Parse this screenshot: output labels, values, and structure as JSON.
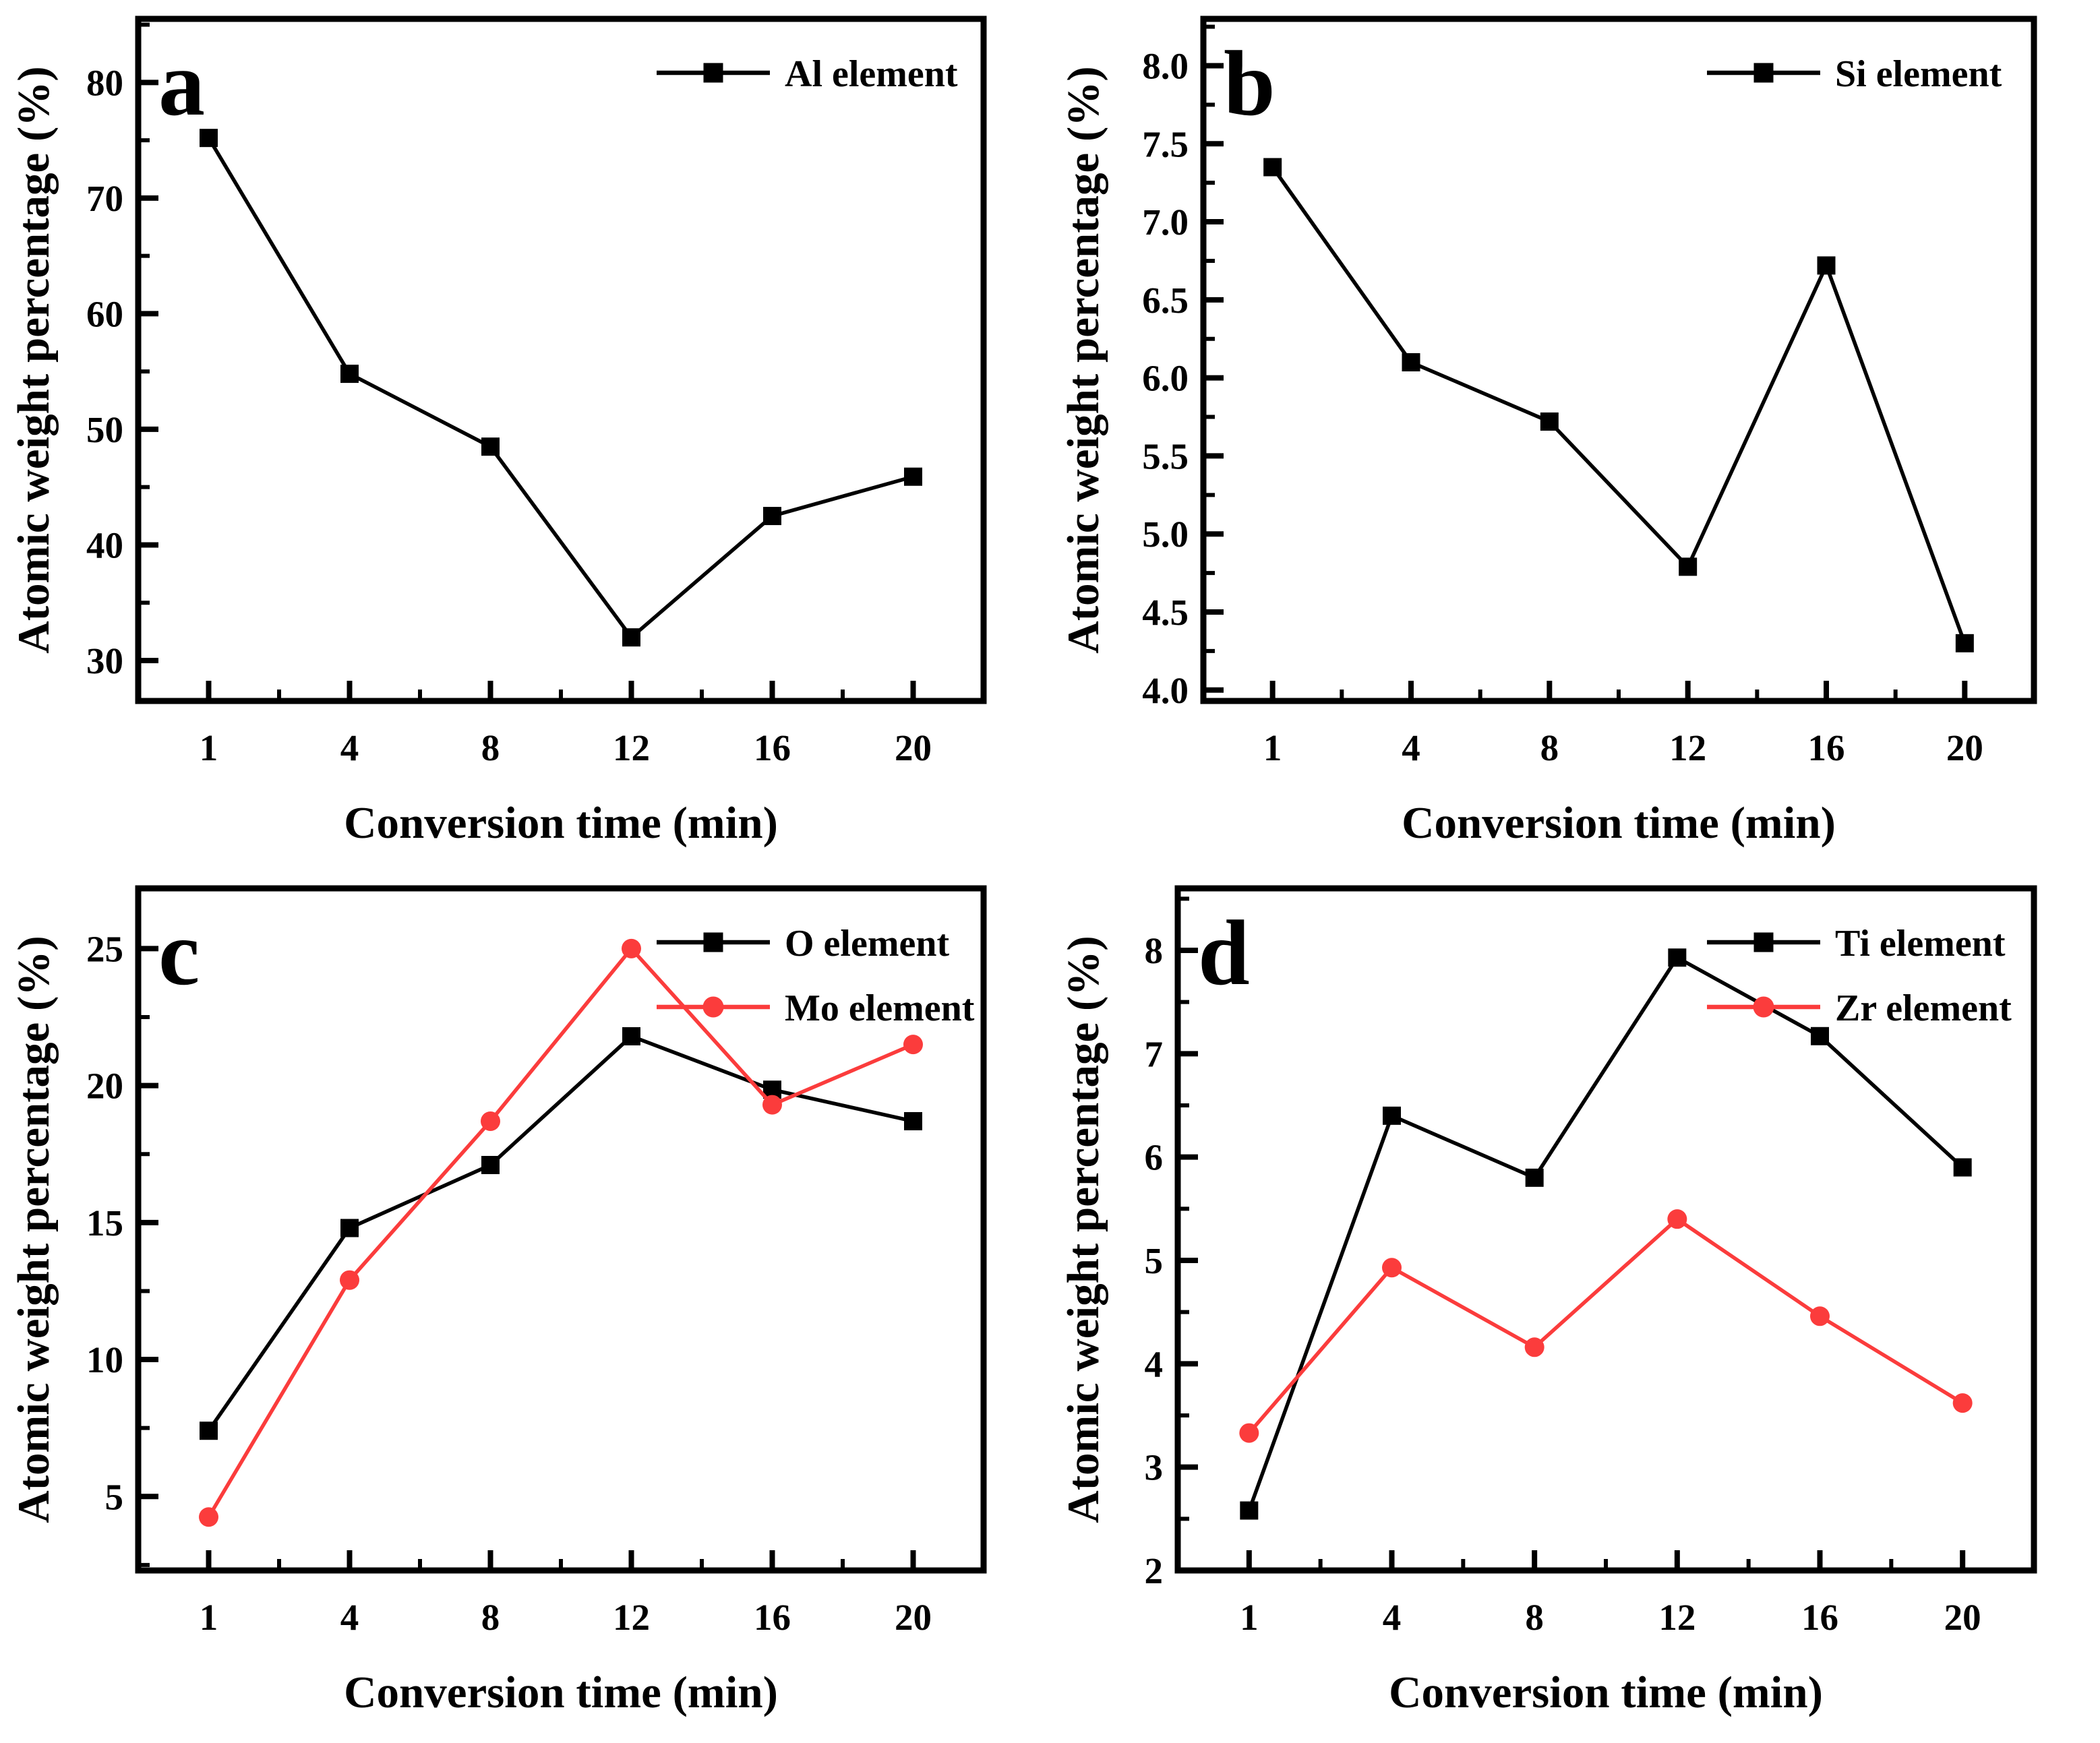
{
  "figure": {
    "background": "#ffffff",
    "xlabel": "Conversion time (min)",
    "ylabel": "Atomic weight percentage (%)"
  },
  "colors": {
    "black_series": "#000000",
    "red_series": "#fb3c3c",
    "axis": "#000000",
    "text": "#000000"
  },
  "chart_data": [
    {
      "type": "line",
      "panel_label": "a",
      "xlabel": "Conversion time (min)",
      "ylabel": "Atomic weight percentage (%)",
      "x_categories": [
        "1",
        "4",
        "8",
        "12",
        "16",
        "20"
      ],
      "ylim": [
        26.5,
        85.5
      ],
      "yticks": [
        30,
        40,
        50,
        60,
        70,
        80
      ],
      "ytick_decimals": 0,
      "yminor_step": 5,
      "grid": false,
      "legend_position": "top-right",
      "series": [
        {
          "name": "Al element",
          "color": "#000000",
          "marker": "square",
          "values": [
            75.2,
            54.8,
            48.5,
            32.0,
            42.5,
            45.9
          ]
        }
      ]
    },
    {
      "type": "line",
      "panel_label": "b",
      "xlabel": "Conversion time (min)",
      "ylabel": "Atomic weight percentage (%)",
      "x_categories": [
        "1",
        "4",
        "8",
        "12",
        "16",
        "20"
      ],
      "ylim": [
        3.93,
        8.3
      ],
      "yticks": [
        4.0,
        4.5,
        5.0,
        5.5,
        6.0,
        6.5,
        7.0,
        7.5,
        8.0
      ],
      "ytick_decimals": 1,
      "yminor_step": 0.25,
      "grid": false,
      "legend_position": "top-right",
      "series": [
        {
          "name": "Si element",
          "color": "#000000",
          "marker": "square",
          "values": [
            7.35,
            6.1,
            5.72,
            4.79,
            6.72,
            4.3
          ]
        }
      ]
    },
    {
      "type": "line",
      "panel_label": "c",
      "xlabel": "Conversion time (min)",
      "ylabel": "Atomic weight percentage (%)",
      "x_categories": [
        "1",
        "4",
        "8",
        "12",
        "16",
        "20"
      ],
      "ylim": [
        2.3,
        27.2
      ],
      "yticks": [
        5,
        10,
        15,
        20,
        25
      ],
      "ytick_decimals": 0,
      "yminor_step": 2.5,
      "grid": false,
      "legend_position": "top-right",
      "series": [
        {
          "name": "O element",
          "color": "#000000",
          "marker": "square",
          "values": [
            7.4,
            14.8,
            17.1,
            21.8,
            19.85,
            18.7
          ]
        },
        {
          "name": "Mo element",
          "color": "#fb3c3c",
          "marker": "circle",
          "values": [
            4.25,
            12.9,
            18.7,
            25.0,
            19.3,
            21.5
          ]
        }
      ]
    },
    {
      "type": "line",
      "panel_label": "d",
      "xlabel": "Conversion time (min)",
      "ylabel": "Atomic weight percentage (%)",
      "x_categories": [
        "1",
        "4",
        "8",
        "12",
        "16",
        "20"
      ],
      "ylim": [
        2.0,
        8.6
      ],
      "yticks": [
        2,
        3,
        4,
        5,
        6,
        7,
        8
      ],
      "ytick_decimals": 0,
      "yminor_step": 0.5,
      "grid": false,
      "legend_position": "top-right",
      "series": [
        {
          "name": "Ti element",
          "color": "#000000",
          "marker": "square",
          "values": [
            2.58,
            6.4,
            5.8,
            7.93,
            7.17,
            5.9
          ]
        },
        {
          "name": "Zr element",
          "color": "#fb3c3c",
          "marker": "circle",
          "values": [
            3.33,
            4.93,
            4.16,
            5.4,
            4.46,
            3.62
          ]
        }
      ]
    }
  ]
}
